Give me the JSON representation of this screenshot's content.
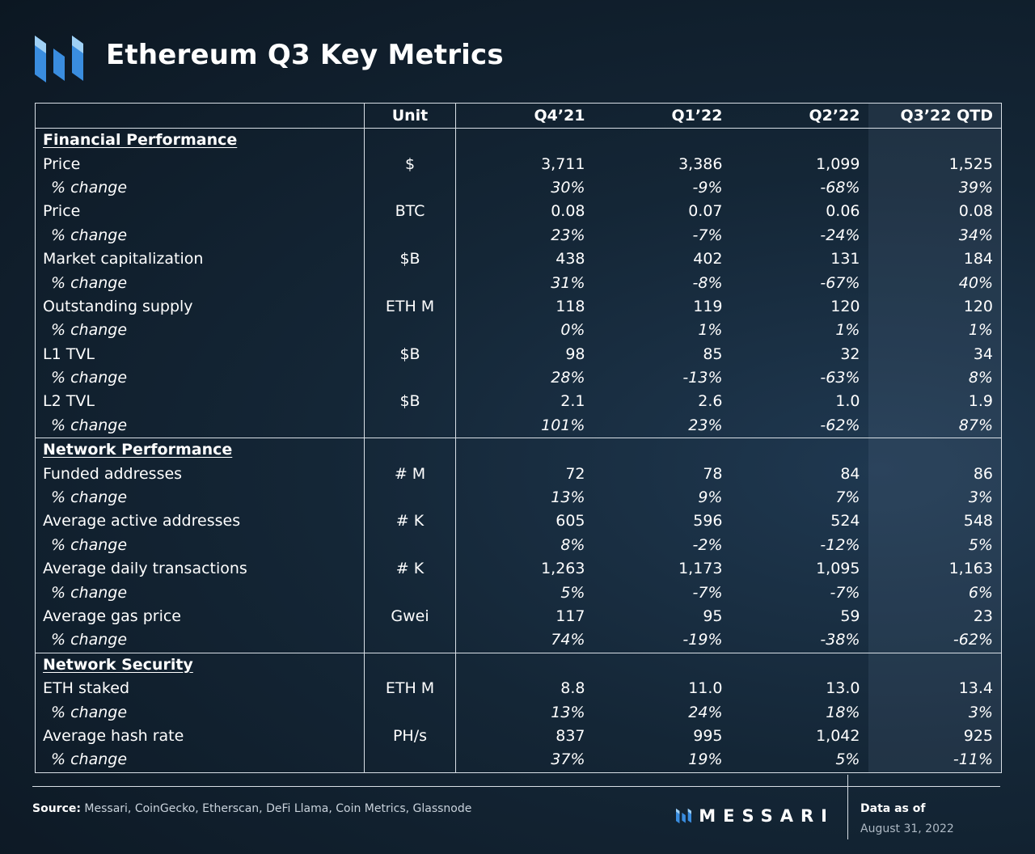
{
  "header": {
    "title": "Ethereum Q3 Key Metrics"
  },
  "colors": {
    "logo_blue": "#3a8ddf",
    "logo_light": "#9fd0f5",
    "background": "#142636",
    "rule": "#d8dfe6"
  },
  "table": {
    "headers": [
      "",
      "Unit",
      "Q4’21",
      "Q1’22",
      "Q2’22",
      "Q3’22 QTD"
    ],
    "sections": [
      {
        "title": "Financial Performance",
        "rows": [
          {
            "label": "Price",
            "unit": "$",
            "values": [
              "3,711",
              "3,386",
              "1,099",
              "1,525"
            ]
          },
          {
            "label": "% change",
            "unit": "",
            "values": [
              "30%",
              "-9%",
              "-68%",
              "39%"
            ]
          },
          {
            "label": "Price",
            "unit": "BTC",
            "values": [
              "0.08",
              "0.07",
              "0.06",
              "0.08"
            ]
          },
          {
            "label": "% change",
            "unit": "",
            "values": [
              "23%",
              "-7%",
              "-24%",
              "34%"
            ]
          },
          {
            "label": "Market capitalization",
            "unit": "$B",
            "values": [
              "438",
              "402",
              "131",
              "184"
            ]
          },
          {
            "label": "% change",
            "unit": "",
            "values": [
              "31%",
              "-8%",
              "-67%",
              "40%"
            ]
          },
          {
            "label": "Outstanding supply",
            "unit": "ETH M",
            "values": [
              "118",
              "119",
              "120",
              "120"
            ]
          },
          {
            "label": "% change",
            "unit": "",
            "values": [
              "0%",
              "1%",
              "1%",
              "1%"
            ]
          },
          {
            "label": "L1 TVL",
            "unit": "$B",
            "values": [
              "98",
              "85",
              "32",
              "34"
            ]
          },
          {
            "label": "% change",
            "unit": "",
            "values": [
              "28%",
              "-13%",
              "-63%",
              "8%"
            ]
          },
          {
            "label": "L2 TVL",
            "unit": "$B",
            "values": [
              "2.1",
              "2.6",
              "1.0",
              "1.9"
            ]
          },
          {
            "label": "% change",
            "unit": "",
            "values": [
              "101%",
              "23%",
              "-62%",
              "87%"
            ]
          }
        ]
      },
      {
        "title": "Network Performance",
        "rows": [
          {
            "label": "Funded addresses",
            "unit": "# M",
            "values": [
              "72",
              "78",
              "84",
              "86"
            ]
          },
          {
            "label": "% change",
            "unit": "",
            "values": [
              "13%",
              "9%",
              "7%",
              "3%"
            ]
          },
          {
            "label": "Average active addresses",
            "unit": "# K",
            "values": [
              "605",
              "596",
              "524",
              "548"
            ]
          },
          {
            "label": "% change",
            "unit": "",
            "values": [
              "8%",
              "-2%",
              "-12%",
              "5%"
            ]
          },
          {
            "label": "Average daily transactions",
            "unit": "# K",
            "values": [
              "1,263",
              "1,173",
              "1,095",
              "1,163"
            ]
          },
          {
            "label": "% change",
            "unit": "",
            "values": [
              "5%",
              "-7%",
              "-7%",
              "6%"
            ]
          },
          {
            "label": "Average gas price",
            "unit": "Gwei",
            "values": [
              "117",
              "95",
              "59",
              "23"
            ]
          },
          {
            "label": "% change",
            "unit": "",
            "values": [
              "74%",
              "-19%",
              "-38%",
              "-62%"
            ]
          }
        ]
      },
      {
        "title": "Network Security",
        "rows": [
          {
            "label": "ETH staked",
            "unit": "ETH M",
            "values": [
              "8.8",
              "11.0",
              "13.0",
              "13.4"
            ]
          },
          {
            "label": "% change",
            "unit": "",
            "values": [
              "13%",
              "24%",
              "18%",
              "3%"
            ]
          },
          {
            "label": "Average hash rate",
            "unit": "PH/s",
            "values": [
              "837",
              "995",
              "1,042",
              "925"
            ]
          },
          {
            "label": "% change",
            "unit": "",
            "values": [
              "37%",
              "19%",
              "5%",
              "-11%"
            ]
          }
        ]
      }
    ]
  },
  "footer": {
    "source_label": "Source:",
    "source_text": " Messari, CoinGecko, Etherscan, DeFi Llama, Coin Metrics, Glassnode",
    "brand": "MESSARI",
    "data_as_of_label": "Data as of",
    "data_as_of_date": "August 31, 2022"
  }
}
